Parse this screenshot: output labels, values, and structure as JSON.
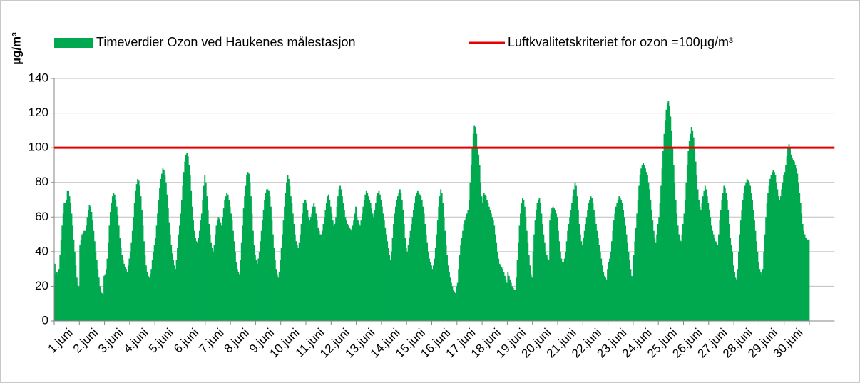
{
  "chart_data": {
    "type": "bar",
    "y_label": "µg/m³",
    "categories": [
      "1.juni",
      "2.juni",
      "3.juni",
      "4.juni",
      "5.juni",
      "6.juni",
      "7.juni",
      "8.juni",
      "9.juni",
      "10.juni",
      "11.juni",
      "12.juni",
      "13.juni",
      "14.juni",
      "15.juni",
      "16.juni",
      "17.juni",
      "18.juni",
      "19.juni",
      "20.juni",
      "21.juni",
      "22.juni",
      "23.juni",
      "24.juni",
      "25.juni",
      "26.juni",
      "27.juni",
      "28.juni",
      "29.juni",
      "30.juni"
    ],
    "series": [
      {
        "name": "Timeverdier Ozon ved Haukenes målestasjon",
        "color": "#00a84f",
        "values": [
          [
            33,
            27,
            28,
            27,
            30,
            38,
            47,
            55,
            62,
            68,
            68,
            70,
            75,
            75,
            72,
            68,
            62,
            55,
            47,
            40,
            32,
            25,
            21,
            20
          ],
          [
            44,
            47,
            50,
            51,
            52,
            52,
            55,
            60,
            64,
            67,
            66,
            63,
            58,
            52,
            46,
            40,
            35,
            30,
            25,
            20,
            17,
            16,
            15,
            26
          ],
          [
            27,
            30,
            36,
            45,
            55,
            63,
            68,
            72,
            74,
            73,
            70,
            66,
            61,
            55,
            48,
            42,
            38,
            35,
            33,
            31,
            30,
            28,
            32,
            36
          ],
          [
            40,
            45,
            52,
            60,
            68,
            75,
            79,
            82,
            81,
            78,
            72,
            64,
            55,
            46,
            38,
            32,
            28,
            26,
            25,
            27,
            30,
            35,
            40,
            44
          ],
          [
            48,
            55,
            62,
            70,
            77,
            82,
            85,
            88,
            87,
            84,
            80,
            73,
            65,
            57,
            50,
            44,
            39,
            35,
            32,
            30,
            35,
            42,
            50,
            55
          ],
          [
            62,
            70,
            78,
            86,
            92,
            96,
            97,
            95,
            90,
            84,
            75,
            66,
            58,
            52,
            48,
            46,
            45,
            48,
            52,
            58,
            62,
            70,
            78,
            84
          ],
          [
            80,
            72,
            64,
            56,
            50,
            45,
            42,
            40,
            44,
            50,
            55,
            58,
            60,
            59,
            57,
            55,
            60,
            65,
            70,
            72,
            74,
            73,
            70,
            66
          ],
          [
            62,
            58,
            52,
            46,
            40,
            34,
            30,
            28,
            27,
            35,
            45,
            55,
            65,
            72,
            78,
            84,
            86,
            85,
            80,
            72,
            62,
            52,
            44,
            38
          ],
          [
            35,
            33,
            36,
            40,
            46,
            52,
            58,
            64,
            70,
            74,
            76,
            76,
            75,
            72,
            66,
            58,
            50,
            42,
            35,
            30,
            27,
            25,
            28,
            35
          ],
          [
            42,
            50,
            58,
            66,
            74,
            80,
            84,
            82,
            78,
            72,
            68,
            62,
            56,
            50,
            46,
            44,
            42,
            45,
            50,
            56,
            62,
            68,
            70,
            70
          ],
          [
            68,
            64,
            60,
            58,
            60,
            62,
            66,
            68,
            66,
            62,
            58,
            54,
            52,
            50,
            50,
            52,
            56,
            60,
            64,
            68,
            72,
            73,
            70,
            66
          ],
          [
            62,
            58,
            55,
            56,
            60,
            66,
            72,
            76,
            78,
            76,
            72,
            68,
            64,
            60,
            58,
            56,
            55,
            54,
            53,
            52,
            55,
            58,
            62,
            66
          ],
          [
            60,
            58,
            56,
            55,
            58,
            62,
            66,
            70,
            73,
            75,
            74,
            72,
            70,
            68,
            65,
            62,
            60,
            64,
            68,
            72,
            74,
            75,
            73,
            70
          ],
          [
            66,
            62,
            58,
            54,
            50,
            46,
            42,
            38,
            35,
            40,
            48,
            56,
            62,
            66,
            70,
            72,
            74,
            76,
            74,
            70,
            64,
            56,
            48,
            42
          ],
          [
            40,
            44,
            48,
            52,
            56,
            60,
            64,
            68,
            72,
            74,
            75,
            74,
            73,
            72,
            70,
            66,
            62,
            56,
            50,
            45,
            40,
            36,
            34,
            32
          ],
          [
            30,
            32,
            36,
            42,
            50,
            58,
            66,
            72,
            76,
            74,
            68,
            60,
            52,
            44,
            38,
            32,
            28,
            25,
            22,
            20,
            18,
            17,
            16,
            20
          ],
          [
            22,
            30,
            38,
            44,
            48,
            52,
            56,
            58,
            60,
            62,
            64,
            70,
            80,
            90,
            100,
            108,
            113,
            112,
            108,
            100,
            96,
            90,
            80,
            72
          ],
          [
            68,
            74,
            73,
            72,
            70,
            68,
            66,
            64,
            62,
            60,
            58,
            55,
            50,
            45,
            40,
            36,
            33,
            32,
            31,
            30,
            28,
            26,
            24,
            22
          ],
          [
            28,
            26,
            24,
            22,
            20,
            19,
            18,
            18,
            25,
            35,
            45,
            55,
            62,
            68,
            71,
            70,
            66,
            60,
            52,
            45,
            38,
            32,
            27,
            25
          ],
          [
            40,
            50,
            58,
            64,
            68,
            70,
            71,
            68,
            62,
            56,
            50,
            45,
            40,
            38,
            36,
            35,
            58,
            62,
            65,
            66,
            65,
            64,
            62,
            60
          ],
          [
            52,
            46,
            40,
            36,
            34,
            34,
            36,
            40,
            46,
            52,
            56,
            60,
            64,
            68,
            72,
            76,
            80,
            78,
            72,
            64,
            56,
            50,
            46,
            44
          ],
          [
            48,
            52,
            56,
            60,
            64,
            68,
            70,
            72,
            71,
            68,
            64,
            60,
            56,
            52,
            48,
            44,
            40,
            36,
            32,
            28,
            26,
            25,
            24,
            30
          ],
          [
            34,
            36,
            40,
            46,
            52,
            58,
            62,
            66,
            68,
            70,
            72,
            71,
            70,
            68,
            64,
            60,
            55,
            50,
            45,
            40,
            35,
            30,
            26,
            25
          ],
          [
            38,
            46,
            54,
            62,
            70,
            78,
            84,
            88,
            90,
            91,
            90,
            88,
            86,
            84,
            80,
            76,
            70,
            64,
            58,
            52,
            48,
            45,
            50,
            56
          ],
          [
            60,
            68,
            78,
            88,
            98,
            108,
            116,
            122,
            126,
            127,
            124,
            118,
            110,
            100,
            90,
            80,
            70,
            62,
            55,
            50,
            47,
            46,
            50,
            56
          ],
          [
            62,
            70,
            80,
            90,
            98,
            104,
            108,
            112,
            110,
            106,
            100,
            92,
            84,
            76,
            70,
            66,
            64,
            68,
            72,
            75,
            78,
            76,
            72,
            68
          ],
          [
            64,
            60,
            55,
            52,
            50,
            48,
            46,
            45,
            44,
            50,
            58,
            64,
            70,
            74,
            78,
            77,
            74,
            70,
            64,
            56,
            48,
            44,
            40,
            32
          ],
          [
            28,
            25,
            24,
            30,
            40,
            50,
            58,
            64,
            70,
            74,
            78,
            80,
            82,
            81,
            80,
            78,
            74,
            70,
            64,
            58,
            52,
            46,
            40,
            34
          ],
          [
            30,
            28,
            27,
            30,
            40,
            50,
            60,
            68,
            74,
            78,
            82,
            84,
            86,
            87,
            86,
            84,
            80,
            76,
            72,
            70,
            72,
            76,
            80,
            84
          ],
          [
            86,
            90,
            95,
            100,
            102,
            100,
            96,
            94,
            93,
            92,
            90,
            88,
            85,
            80,
            74,
            68,
            62,
            56,
            52,
            50,
            48,
            47,
            47,
            47
          ]
        ]
      }
    ],
    "reference_line": {
      "name": "Luftkvalitetskriteriet for ozon =100µg/m³",
      "value": 100,
      "color": "#e60000"
    },
    "ylim": [
      0,
      140
    ],
    "yticks": [
      0,
      20,
      40,
      60,
      80,
      100,
      120,
      140
    ],
    "grid": true
  }
}
